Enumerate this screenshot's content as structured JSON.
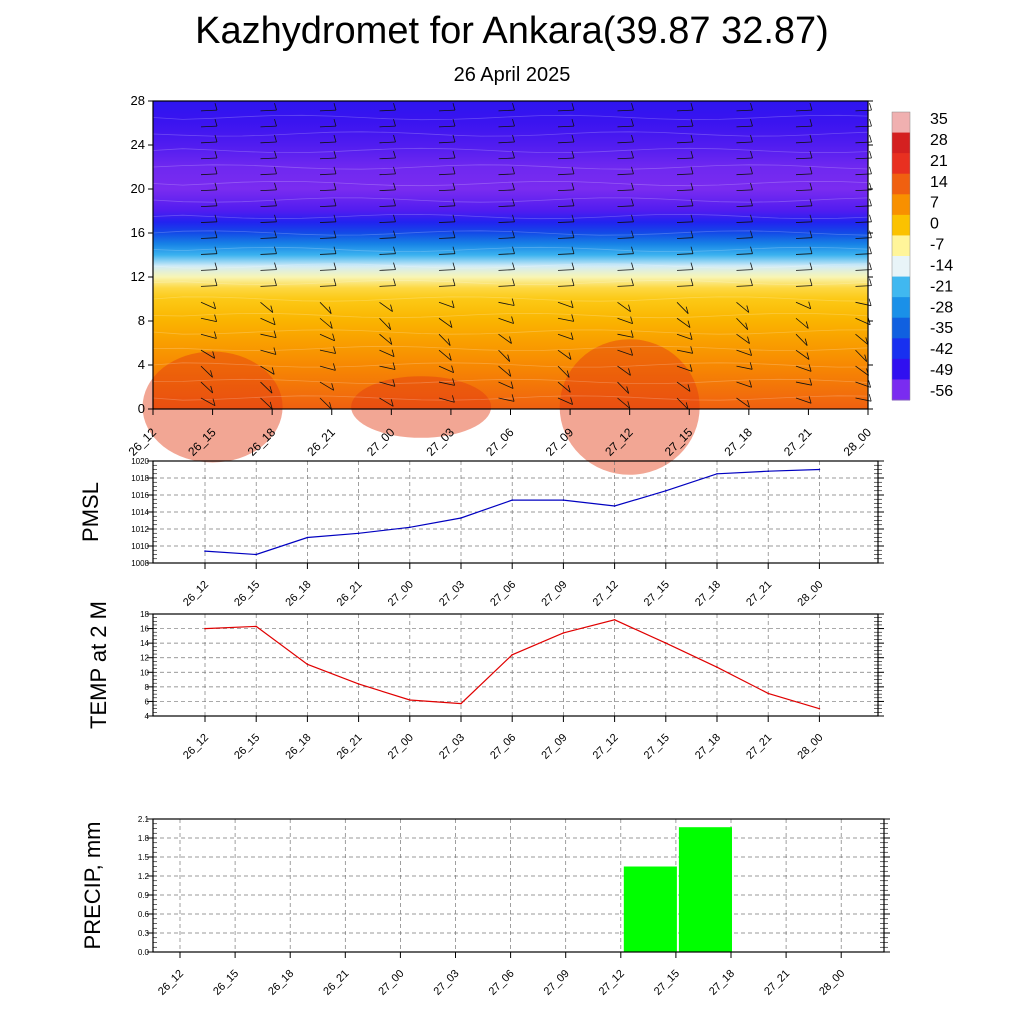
{
  "header": {
    "title": "Kazhydromet for Ankara(39.87 32.87)",
    "subtitle": "26 April 2025"
  },
  "chart_data": [
    {
      "type": "heatmap",
      "xlabel": "",
      "ylabel": "",
      "x_categories": [
        "26_12",
        "26_15",
        "26_18",
        "26_21",
        "27_00",
        "27_03",
        "27_06",
        "27_09",
        "27_12",
        "27_15",
        "27_18",
        "27_21",
        "28_00"
      ],
      "y_ticks": [
        0,
        4,
        8,
        12,
        16,
        20,
        24,
        28
      ],
      "ylim": [
        0,
        28
      ],
      "colorbar": {
        "labels": [
          "35",
          "28",
          "21",
          "14",
          "7",
          "0",
          "-7",
          "-14",
          "-21",
          "-28",
          "-35",
          "-42",
          "-49",
          "-56"
        ],
        "colors": [
          "#f0b0b0",
          "#d42020",
          "#e83020",
          "#f06010",
          "#f89000",
          "#fbc200",
          "#fff59a",
          "#e8f4f8",
          "#40b8f0",
          "#1a90e8",
          "#1060e0",
          "#1830f0",
          "#3010f0",
          "#7a2cf0"
        ]
      },
      "temperature_profile": {
        "levels": [
          0,
          2,
          4,
          6,
          8,
          10,
          11,
          12,
          13,
          14,
          15,
          16,
          17,
          18,
          20,
          22,
          24,
          26,
          28
        ],
        "values": [
          14,
          11,
          8,
          5,
          2,
          -1,
          -3,
          -9,
          -15,
          -22,
          -30,
          -38,
          -45,
          -52,
          -56,
          -55,
          -52,
          -50,
          -48
        ]
      },
      "grid": false,
      "legend": "right"
    },
    {
      "type": "line",
      "ylabel": "PMSL",
      "categories": [
        "26_12",
        "26_15",
        "26_18",
        "26_21",
        "27_00",
        "27_03",
        "27_06",
        "27_09",
        "27_12",
        "27_15",
        "27_18",
        "27_21",
        "28_00"
      ],
      "values": [
        1009.4,
        1009.0,
        1011.0,
        1011.5,
        1012.2,
        1013.3,
        1015.4,
        1015.4,
        1014.7,
        1016.5,
        1018.5,
        1018.8,
        1019.0
      ],
      "ylim": [
        1008,
        1020
      ],
      "y_ticks": [
        1008,
        1010,
        1012,
        1014,
        1016,
        1018,
        1020
      ],
      "color": "#0000c0",
      "grid": true
    },
    {
      "type": "line",
      "ylabel": "TEMP at 2 M",
      "categories": [
        "26_12",
        "26_15",
        "26_18",
        "26_21",
        "27_00",
        "27_03",
        "27_06",
        "27_09",
        "27_12",
        "27_15",
        "27_18",
        "27_21",
        "28_00"
      ],
      "values": [
        16.0,
        16.3,
        11.1,
        8.4,
        6.2,
        5.7,
        12.4,
        15.4,
        17.2,
        14.0,
        10.7,
        7.1,
        5.0
      ],
      "ylim": [
        4,
        18
      ],
      "y_ticks": [
        4,
        6,
        8,
        10,
        12,
        14,
        16,
        18
      ],
      "color": "#e00000",
      "grid": true
    },
    {
      "type": "bar",
      "ylabel": "PRECIP, mm",
      "categories": [
        "26_12",
        "26_15",
        "26_18",
        "26_21",
        "27_00",
        "27_03",
        "27_06",
        "27_09",
        "27_12",
        "27_15",
        "27_18",
        "27_21",
        "28_00"
      ],
      "values": [
        0,
        0,
        0,
        0,
        0,
        0,
        0,
        0,
        0,
        1.35,
        1.97,
        0,
        0
      ],
      "ylim": [
        0,
        2.1
      ],
      "y_ticks": [
        "0.0",
        "0.3",
        "0.6",
        "0.9",
        "1.2",
        "1.5",
        "1.8",
        "2.1"
      ],
      "color": "#00ff00",
      "grid": true
    }
  ]
}
